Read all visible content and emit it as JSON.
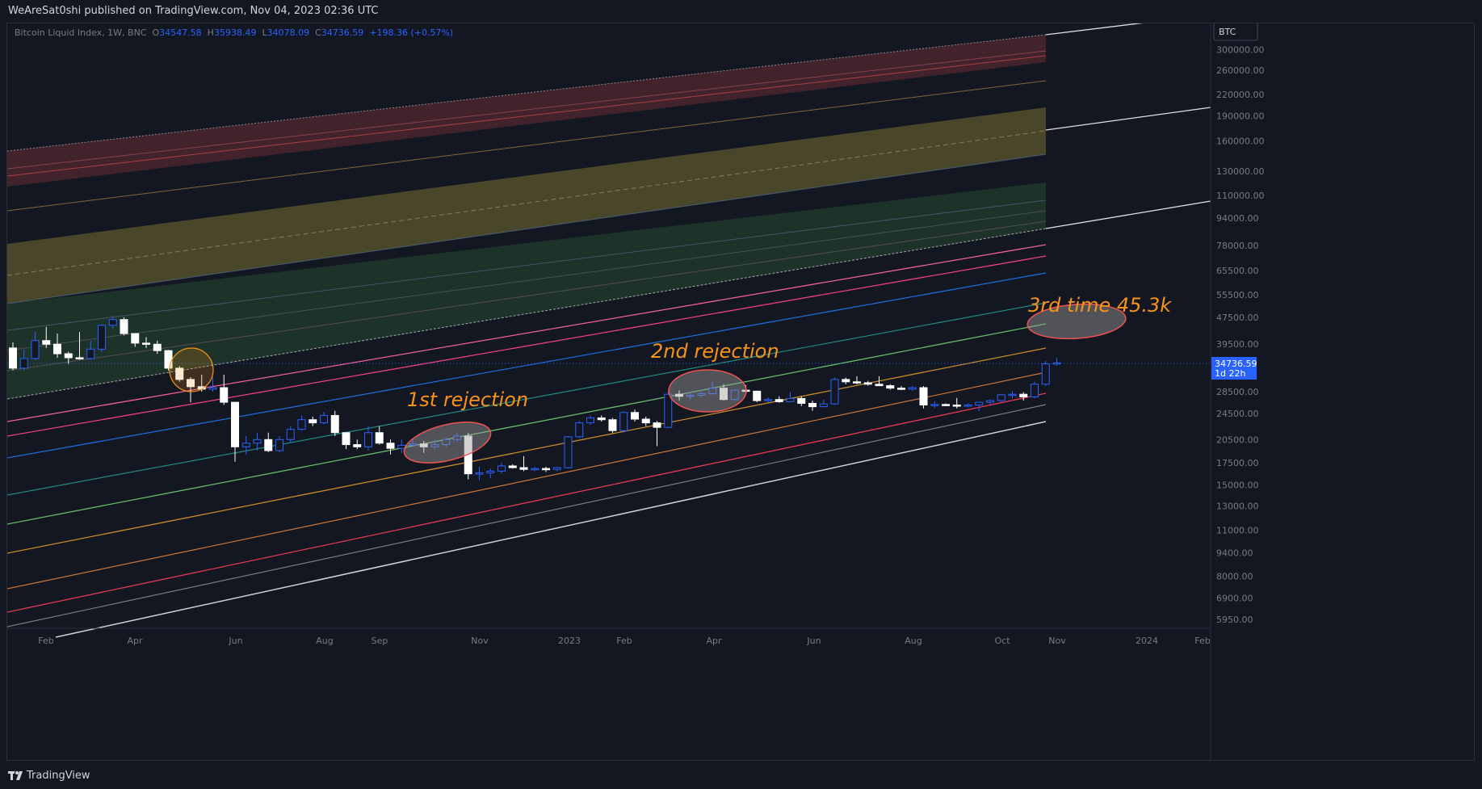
{
  "publisher": "WeAreSat0shi published on TradingView.com, Nov 04, 2023 02:36 UTC",
  "legend": {
    "symbol": "Bitcoin Liquid Index, 1W, BNC",
    "open_label": "O",
    "open": "34547.58",
    "high_label": "H",
    "high": "35938.49",
    "low_label": "L",
    "low": "34078.09",
    "close_label": "C",
    "close": "34736.59",
    "change": "+198.36 (+0.57%)"
  },
  "price_scale": {
    "currency": "BTC",
    "ticks": [
      "300000.00",
      "260000.00",
      "220000.00",
      "190000.00",
      "160000.00",
      "130000.00",
      "110000.00",
      "94000.00",
      "78000.00",
      "65500.00",
      "55500.00",
      "47500.00",
      "39500.00",
      "28500.00",
      "24500.00",
      "20500.00",
      "17500.00",
      "15000.00",
      "13000.00",
      "11000.00",
      "9400.00",
      "8000.00",
      "6900.00",
      "5950.00"
    ],
    "last_price": "34736.59",
    "countdown": "1d 22h"
  },
  "time_axis": [
    "Feb",
    "Apr",
    "Jun",
    "Aug",
    "Sep",
    "Nov",
    "2023",
    "Feb",
    "Apr",
    "Jun",
    "Aug",
    "Oct",
    "Nov",
    "2024",
    "Feb"
  ],
  "annotations": {
    "first": "1st rejection",
    "second": "2nd rejection",
    "third": "3rd time 45.3k"
  },
  "colors": {
    "background": "#131722",
    "up_candle_border": "#2962ff",
    "down_candle": "#ffffff",
    "annotation_text": "#f7931a",
    "band_red": "#ef5350",
    "band_yellow": "#c9b23a",
    "band_green": "#4caf50"
  },
  "watermark": "TradingView",
  "candles": [
    {
      "o": 38500,
      "h": 40000,
      "l": 33000,
      "c": 33500
    },
    {
      "o": 33500,
      "h": 38000,
      "l": 33000,
      "c": 35800
    },
    {
      "o": 35800,
      "h": 43000,
      "l": 35500,
      "c": 40500
    },
    {
      "o": 40500,
      "h": 44500,
      "l": 38500,
      "c": 39500
    },
    {
      "o": 39500,
      "h": 42500,
      "l": 36000,
      "c": 37000
    },
    {
      "o": 37000,
      "h": 37500,
      "l": 34500,
      "c": 36000
    },
    {
      "o": 36000,
      "h": 43000,
      "l": 35500,
      "c": 35800
    },
    {
      "o": 35800,
      "h": 40500,
      "l": 35500,
      "c": 38200
    },
    {
      "o": 38200,
      "h": 45200,
      "l": 37500,
      "c": 45000
    },
    {
      "o": 45000,
      "h": 48000,
      "l": 44000,
      "c": 46800
    },
    {
      "o": 46800,
      "h": 47500,
      "l": 42000,
      "c": 42500
    },
    {
      "o": 42500,
      "h": 42500,
      "l": 38800,
      "c": 39800
    },
    {
      "o": 39800,
      "h": 41500,
      "l": 38500,
      "c": 39500
    },
    {
      "o": 39500,
      "h": 40500,
      "l": 37000,
      "c": 37800
    },
    {
      "o": 37800,
      "h": 38000,
      "l": 33000,
      "c": 33500
    },
    {
      "o": 33500,
      "h": 34000,
      "l": 30500,
      "c": 31000
    },
    {
      "o": 31000,
      "h": 31500,
      "l": 26500,
      "c": 29500
    },
    {
      "o": 29500,
      "h": 32000,
      "l": 28500,
      "c": 29000
    },
    {
      "o": 29000,
      "h": 31500,
      "l": 28500,
      "c": 29300
    },
    {
      "o": 29300,
      "h": 32000,
      "l": 26000,
      "c": 26500
    },
    {
      "o": 26500,
      "h": 26500,
      "l": 17600,
      "c": 19500
    },
    {
      "o": 19500,
      "h": 21000,
      "l": 18500,
      "c": 20000
    },
    {
      "o": 20000,
      "h": 21500,
      "l": 19000,
      "c": 20500
    },
    {
      "o": 20500,
      "h": 21500,
      "l": 18800,
      "c": 19000
    },
    {
      "o": 19000,
      "h": 21000,
      "l": 18800,
      "c": 20500
    },
    {
      "o": 20500,
      "h": 22500,
      "l": 20000,
      "c": 22000
    },
    {
      "o": 22000,
      "h": 24200,
      "l": 21800,
      "c": 23500
    },
    {
      "o": 23500,
      "h": 24000,
      "l": 22500,
      "c": 23000
    },
    {
      "o": 23000,
      "h": 24800,
      "l": 22800,
      "c": 24200
    },
    {
      "o": 24200,
      "h": 25000,
      "l": 21000,
      "c": 21500
    },
    {
      "o": 21500,
      "h": 21500,
      "l": 19200,
      "c": 19800
    },
    {
      "o": 19800,
      "h": 20500,
      "l": 19200,
      "c": 19500
    },
    {
      "o": 19500,
      "h": 22500,
      "l": 19000,
      "c": 21500
    },
    {
      "o": 21500,
      "h": 22500,
      "l": 19800,
      "c": 20000
    },
    {
      "o": 20000,
      "h": 20500,
      "l": 18500,
      "c": 19300
    },
    {
      "o": 19300,
      "h": 20500,
      "l": 18700,
      "c": 19700
    },
    {
      "o": 19700,
      "h": 20600,
      "l": 19500,
      "c": 19900
    },
    {
      "o": 19900,
      "h": 20300,
      "l": 18700,
      "c": 19500
    },
    {
      "o": 19500,
      "h": 20500,
      "l": 19200,
      "c": 19800
    },
    {
      "o": 19800,
      "h": 20800,
      "l": 19500,
      "c": 20500
    },
    {
      "o": 20500,
      "h": 21500,
      "l": 20200,
      "c": 21000
    },
    {
      "o": 21000,
      "h": 21500,
      "l": 15600,
      "c": 16200
    },
    {
      "o": 16200,
      "h": 17000,
      "l": 15500,
      "c": 16300
    },
    {
      "o": 16300,
      "h": 16800,
      "l": 15700,
      "c": 16500
    },
    {
      "o": 16500,
      "h": 17500,
      "l": 16200,
      "c": 17100
    },
    {
      "o": 17100,
      "h": 17300,
      "l": 16800,
      "c": 16900
    },
    {
      "o": 16900,
      "h": 18300,
      "l": 16500,
      "c": 16700
    },
    {
      "o": 16700,
      "h": 17000,
      "l": 16500,
      "c": 16800
    },
    {
      "o": 16800,
      "h": 17000,
      "l": 16400,
      "c": 16700
    },
    {
      "o": 16700,
      "h": 17000,
      "l": 16500,
      "c": 16900
    },
    {
      "o": 16900,
      "h": 21000,
      "l": 16800,
      "c": 20900
    },
    {
      "o": 20900,
      "h": 23300,
      "l": 20700,
      "c": 23000
    },
    {
      "o": 23000,
      "h": 24200,
      "l": 22700,
      "c": 23800
    },
    {
      "o": 23800,
      "h": 24200,
      "l": 23200,
      "c": 23500
    },
    {
      "o": 23500,
      "h": 23800,
      "l": 21500,
      "c": 21800
    },
    {
      "o": 21800,
      "h": 24900,
      "l": 21500,
      "c": 24700
    },
    {
      "o": 24700,
      "h": 25200,
      "l": 23200,
      "c": 23600
    },
    {
      "o": 23600,
      "h": 24000,
      "l": 22500,
      "c": 23000
    },
    {
      "o": 23000,
      "h": 23300,
      "l": 19600,
      "c": 22300
    },
    {
      "o": 22300,
      "h": 28500,
      "l": 22200,
      "c": 28000
    },
    {
      "o": 28000,
      "h": 28800,
      "l": 26800,
      "c": 27600
    },
    {
      "o": 27600,
      "h": 28400,
      "l": 27000,
      "c": 27800
    },
    {
      "o": 27800,
      "h": 28500,
      "l": 27500,
      "c": 28100
    },
    {
      "o": 28100,
      "h": 30500,
      "l": 27900,
      "c": 29200
    },
    {
      "o": 29200,
      "h": 30000,
      "l": 26800,
      "c": 27000
    },
    {
      "o": 27000,
      "h": 29000,
      "l": 26800,
      "c": 28800
    },
    {
      "o": 28800,
      "h": 29800,
      "l": 28400,
      "c": 28600
    },
    {
      "o": 28600,
      "h": 28700,
      "l": 26500,
      "c": 26800
    },
    {
      "o": 26800,
      "h": 27400,
      "l": 26500,
      "c": 27000
    },
    {
      "o": 27000,
      "h": 27600,
      "l": 26400,
      "c": 26600
    },
    {
      "o": 26600,
      "h": 28400,
      "l": 26500,
      "c": 27200
    },
    {
      "o": 27200,
      "h": 27600,
      "l": 25800,
      "c": 26300
    },
    {
      "o": 26300,
      "h": 26800,
      "l": 25000,
      "c": 25700
    },
    {
      "o": 25700,
      "h": 27000,
      "l": 25600,
      "c": 26200
    },
    {
      "o": 26200,
      "h": 31400,
      "l": 26000,
      "c": 31000
    },
    {
      "o": 31000,
      "h": 31400,
      "l": 30000,
      "c": 30500
    },
    {
      "o": 30500,
      "h": 31700,
      "l": 30000,
      "c": 30300
    },
    {
      "o": 30300,
      "h": 30700,
      "l": 29700,
      "c": 30000
    },
    {
      "o": 30000,
      "h": 31700,
      "l": 29600,
      "c": 29700
    },
    {
      "o": 29700,
      "h": 30000,
      "l": 28900,
      "c": 29200
    },
    {
      "o": 29200,
      "h": 29600,
      "l": 28800,
      "c": 29000
    },
    {
      "o": 29000,
      "h": 29600,
      "l": 28700,
      "c": 29300
    },
    {
      "o": 29300,
      "h": 29600,
      "l": 25400,
      "c": 26000
    },
    {
      "o": 26000,
      "h": 26700,
      "l": 25500,
      "c": 26100
    },
    {
      "o": 26100,
      "h": 26300,
      "l": 25800,
      "c": 26000
    },
    {
      "o": 26000,
      "h": 27300,
      "l": 25400,
      "c": 25800
    },
    {
      "o": 25800,
      "h": 26300,
      "l": 25600,
      "c": 26000
    },
    {
      "o": 26000,
      "h": 26600,
      "l": 24900,
      "c": 26500
    },
    {
      "o": 26500,
      "h": 27000,
      "l": 26100,
      "c": 26800
    },
    {
      "o": 26800,
      "h": 28000,
      "l": 26600,
      "c": 27900
    },
    {
      "o": 27900,
      "h": 28600,
      "l": 27200,
      "c": 28000
    },
    {
      "o": 28000,
      "h": 28400,
      "l": 26800,
      "c": 27500
    },
    {
      "o": 27500,
      "h": 30500,
      "l": 27200,
      "c": 30000
    },
    {
      "o": 30000,
      "h": 35200,
      "l": 29600,
      "c": 34500
    },
    {
      "o": 34547.58,
      "h": 35938.49,
      "l": 34078.09,
      "c": 34736.59
    }
  ]
}
